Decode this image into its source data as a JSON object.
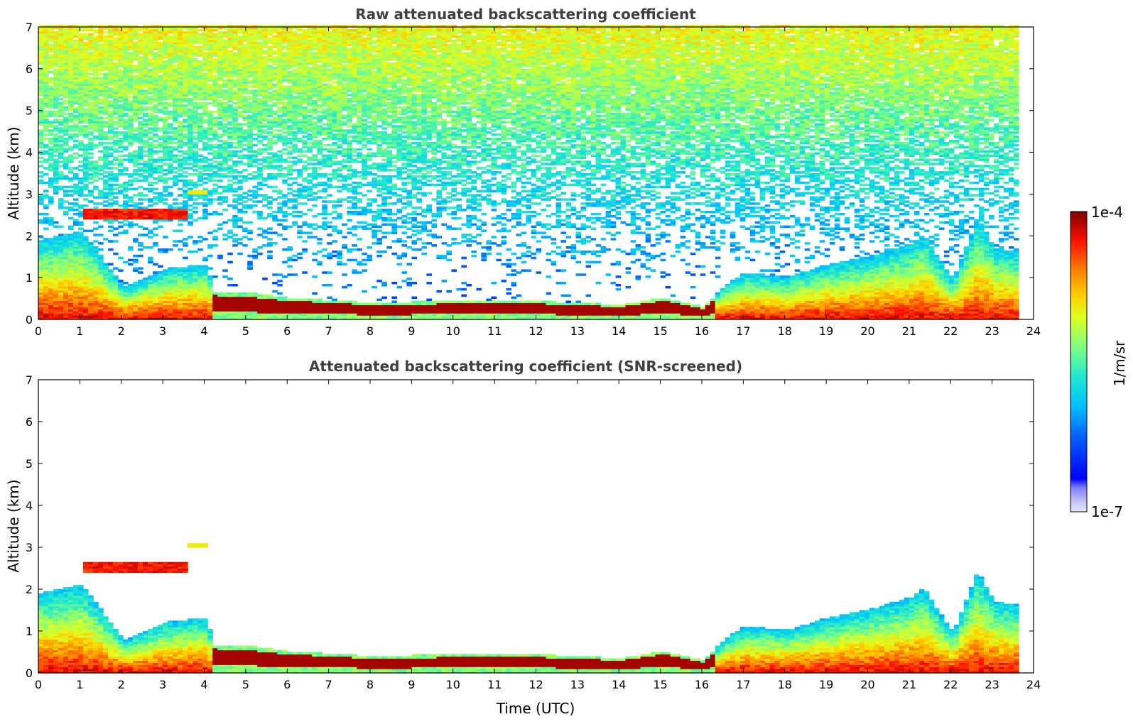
{
  "chart_data": [
    {
      "type": "heatmap",
      "title": "Raw attenuated backscattering coefficient",
      "xlabel": "",
      "ylabel": "Altitude (km)",
      "xlim": [
        0,
        24
      ],
      "ylim": [
        0,
        7
      ],
      "xticks": [
        "0",
        "1",
        "2",
        "3",
        "4",
        "5",
        "6",
        "7",
        "8",
        "9",
        "10",
        "11",
        "12",
        "13",
        "14",
        "15",
        "16",
        "17",
        "18",
        "19",
        "20",
        "21",
        "22",
        "23",
        "24"
      ],
      "yticks": [
        "0",
        "1",
        "2",
        "3",
        "4",
        "5",
        "6",
        "7"
      ],
      "data_coverage_hours": [
        0,
        23.55
      ],
      "screened": false,
      "features": [
        {
          "name": "boundary layer top",
          "x": [
            0,
            1,
            2,
            3,
            4,
            4.2,
            5,
            6,
            8,
            10,
            12,
            14,
            15,
            16,
            16.5,
            17,
            18,
            19,
            20,
            21,
            21.3,
            22,
            22.6,
            23,
            23.55
          ],
          "y": [
            1.9,
            2.1,
            0.75,
            1.2,
            1.3,
            0.65,
            0.62,
            0.5,
            0.38,
            0.42,
            0.42,
            0.33,
            0.5,
            0.28,
            0.8,
            1.1,
            1.0,
            1.3,
            1.5,
            1.8,
            2.0,
            0.95,
            2.4,
            1.7,
            1.6
          ]
        },
        {
          "name": "aerosol layer ~2.5 km",
          "x_range": [
            1.0,
            3.6
          ],
          "y_center": 2.5
        },
        {
          "name": "aerosol layer ~3.0 km",
          "x_range": [
            3.5,
            4.0
          ],
          "y_center": 3.02
        }
      ]
    },
    {
      "type": "heatmap",
      "title": "Attenuated backscattering coefficient (SNR-screened)",
      "xlabel": "Time (UTC)",
      "ylabel": "Altitude (km)",
      "xlim": [
        0,
        24
      ],
      "ylim": [
        0,
        7
      ],
      "xticks": [
        "0",
        "1",
        "2",
        "3",
        "4",
        "5",
        "6",
        "7",
        "8",
        "9",
        "10",
        "11",
        "12",
        "13",
        "14",
        "15",
        "16",
        "17",
        "18",
        "19",
        "20",
        "21",
        "22",
        "23",
        "24"
      ],
      "yticks": [
        "0",
        "1",
        "2",
        "3",
        "4",
        "5",
        "6",
        "7"
      ],
      "data_coverage_hours": [
        0,
        23.55
      ],
      "screened": true
    }
  ],
  "colorbar": {
    "min_label": "1e-7",
    "max_label": "1e-4",
    "unit_label": "1/m/sr",
    "scale": "log",
    "colormap": "jet",
    "low_color": "#e6e6fa",
    "high_color": "#7f0000"
  }
}
